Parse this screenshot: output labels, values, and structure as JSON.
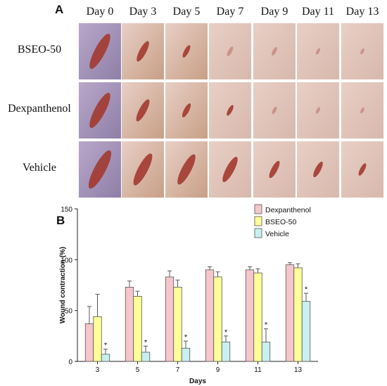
{
  "panel_a": {
    "letter": "A",
    "days": [
      "Day 0",
      "Day 3",
      "Day 5",
      "Day 7",
      "Day 9",
      "Day 11",
      "Day 13"
    ],
    "rows": [
      {
        "label": "BSEO-50",
        "wound_sizes": [
          1.0,
          0.55,
          0.3,
          0.22,
          0.18,
          0.12,
          0.1
        ]
      },
      {
        "label": "Dexpanthenol",
        "wound_sizes": [
          1.0,
          0.6,
          0.35,
          0.25,
          0.15,
          0.12,
          0.1
        ]
      },
      {
        "label": "Vehicle",
        "wound_sizes": [
          1.1,
          0.9,
          0.85,
          0.7,
          0.45,
          0.4,
          0.3
        ]
      }
    ],
    "colors": {
      "wound": "#a33a30",
      "skin_light": "#e8cfc6",
      "skin_dark": "#c89f86"
    }
  },
  "chart_data": {
    "panel_letter": "B",
    "type": "bar",
    "categories": [
      "3",
      "5",
      "7",
      "9",
      "11",
      "13"
    ],
    "xlabel": "Days",
    "ylabel": "Wound contraction (%)",
    "ylim": [
      0,
      150
    ],
    "yticks": [
      0,
      50,
      100,
      150
    ],
    "series": [
      {
        "name": "Dexpanthenol",
        "color": "#f5c6cb",
        "values": [
          37,
          73,
          83,
          90,
          90,
          95
        ],
        "errors": [
          17,
          6,
          6,
          3,
          3,
          2
        ],
        "sig": [
          false,
          false,
          false,
          false,
          false,
          false
        ]
      },
      {
        "name": "BSEO-50",
        "color": "#ffff99",
        "values": [
          44,
          64,
          73,
          83,
          87,
          92
        ],
        "errors": [
          22,
          5,
          7,
          5,
          4,
          4
        ],
        "sig": [
          false,
          false,
          false,
          false,
          false,
          false
        ]
      },
      {
        "name": "Vehicle",
        "color": "#c8f0f0",
        "values": [
          7,
          9,
          13,
          19,
          19,
          59
        ],
        "errors": [
          5,
          6,
          7,
          6,
          13,
          8
        ],
        "sig": [
          true,
          true,
          true,
          true,
          true,
          true
        ]
      }
    ],
    "sig_mark": "*",
    "legend_position": "top-right"
  }
}
